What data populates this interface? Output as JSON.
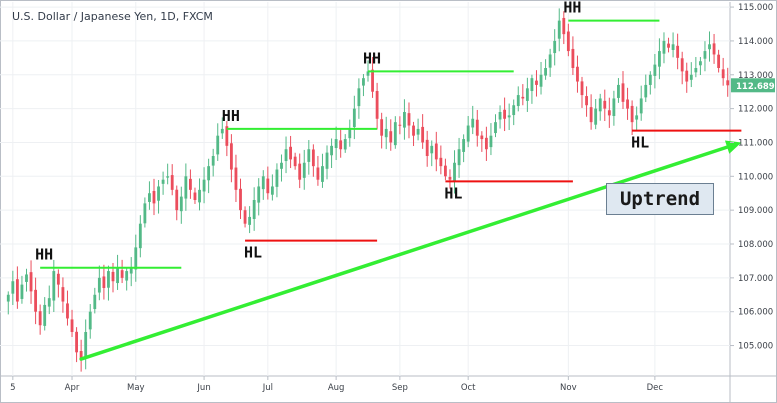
{
  "chart_data": {
    "type": "candlestick",
    "title": "U.S. Dollar / Japanese Yen, 1D, FXCM",
    "last_price": "112.689",
    "ylim": [
      104.1,
      115.15
    ],
    "y_ticks": [
      "115.000",
      "114.000",
      "113.000",
      "112.000",
      "111.000",
      "110.000",
      "109.000",
      "108.000",
      "107.000",
      "106.000",
      "105.000"
    ],
    "x_ticks": [
      "5",
      "Apr",
      "May",
      "Jun",
      "Jul",
      "Aug",
      "Sep",
      "Oct",
      "Nov",
      "Dec"
    ],
    "colors": {
      "up": "#53b987",
      "down": "#eb4d5c",
      "grid": "#eef0f3",
      "trend": "#33ee33",
      "high_line": "#33ee33",
      "low_line": "#ee1111",
      "last_price_bg": "#53b987"
    },
    "ohlc_path": [
      106.5,
      106.9,
      106.3,
      106.8,
      107.1,
      106.6,
      106.0,
      105.6,
      106.2,
      106.4,
      107.2,
      106.8,
      106.3,
      105.8,
      105.4,
      104.8,
      104.6,
      105.4,
      106.0,
      106.5,
      107.0,
      106.7,
      107.2,
      106.9,
      107.3,
      107.0,
      107.2,
      107.3,
      107.9,
      108.6,
      109.2,
      109.5,
      109.2,
      109.7,
      109.9,
      110.0,
      109.6,
      109.0,
      109.4,
      110.0,
      109.6,
      109.3,
      109.6,
      109.9,
      110.3,
      110.6,
      111.2,
      111.4,
      110.9,
      110.2,
      109.6,
      109.0,
      108.6,
      108.8,
      109.3,
      109.7,
      110.0,
      109.5,
      109.7,
      110.2,
      110.4,
      110.8,
      110.5,
      110.3,
      109.9,
      110.4,
      110.8,
      110.3,
      109.9,
      110.3,
      110.7,
      110.9,
      111.1,
      110.8,
      111.1,
      111.4,
      112.0,
      112.6,
      112.9,
      113.1,
      112.5,
      111.7,
      111.2,
      111.4,
      111.0,
      111.6,
      111.5,
      111.9,
      111.5,
      111.2,
      111.4,
      111.0,
      110.6,
      110.9,
      110.5,
      110.3,
      110.0,
      109.9,
      110.4,
      110.8,
      111.1,
      111.5,
      111.7,
      111.2,
      111.1,
      110.8,
      111.2,
      111.6,
      111.9,
      111.7,
      111.8,
      112.1,
      112.4,
      112.3,
      112.6,
      112.9,
      112.7,
      113.0,
      113.2,
      113.6,
      114.0,
      114.6,
      114.2,
      113.7,
      113.2,
      112.8,
      112.4,
      112.1,
      111.6,
      112.0,
      112.3,
      112.0,
      111.8,
      112.3,
      112.7,
      112.2,
      112.0,
      111.6,
      111.8,
      112.3,
      112.7,
      113.0,
      113.3,
      113.7,
      114.0,
      113.8,
      113.9,
      113.5,
      113.1,
      112.8,
      113.0,
      113.2,
      113.4,
      113.7,
      113.9,
      113.6,
      113.2,
      112.9,
      112.689
    ],
    "annotations": {
      "highs": [
        {
          "label": "HH",
          "level": 107.3,
          "from": 7,
          "to": 38
        },
        {
          "label": "HH",
          "level": 111.4,
          "from": 48,
          "to": 81
        },
        {
          "label": "HH",
          "level": 113.1,
          "from": 79,
          "to": 111
        },
        {
          "label": "HH",
          "level": 114.6,
          "from": 123,
          "to": 143
        }
      ],
      "lows": [
        {
          "label": "HL",
          "level": 108.1,
          "from": 52,
          "to": 81
        },
        {
          "label": "HL",
          "level": 109.85,
          "from": 96,
          "to": 124
        },
        {
          "label": "HL",
          "level": 111.35,
          "from": 137,
          "to": 161
        }
      ],
      "trend_label": "Uptrend",
      "trend_from": {
        "bar": 16,
        "price": 104.6
      },
      "trend_to": {
        "bar": 161,
        "price": 111.0
      }
    }
  }
}
